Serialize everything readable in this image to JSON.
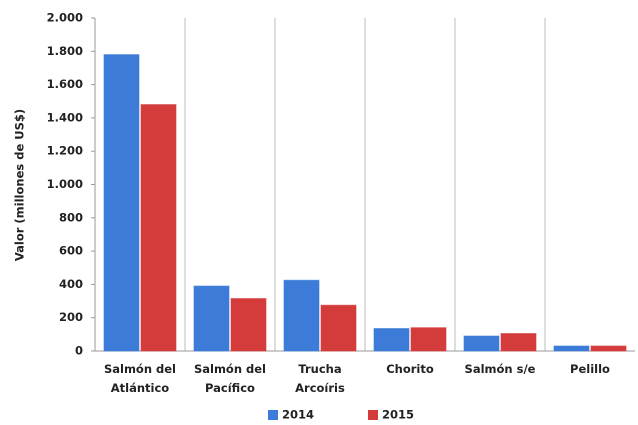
{
  "chart_data": {
    "type": "bar",
    "y_label": "Valor (millones de US$)",
    "categories": [
      "Salmón del Atlántico",
      "Salmón del Pacífico",
      "Trucha Arcoíris",
      "Chorito",
      "Salmón s/e",
      "Pelillo"
    ],
    "series": [
      {
        "name": "2014",
        "color": "#3c7bd8",
        "values": [
          1780,
          390,
          425,
          135,
          90,
          30
        ]
      },
      {
        "name": "2015",
        "color": "#d43c3c",
        "values": [
          1480,
          315,
          275,
          140,
          105,
          30
        ]
      }
    ],
    "ylim": [
      0,
      2000
    ],
    "yticks": [
      0,
      200,
      400,
      600,
      800,
      {
        "value": 1000,
        "label": "1.000"
      },
      {
        "value": 1200,
        "label": "1.200"
      },
      {
        "value": 1400,
        "label": "1.400"
      },
      {
        "value": 1600,
        "label": "1.600"
      },
      {
        "value": 1800,
        "label": "1.800"
      },
      {
        "value": 2000,
        "label": "2.000"
      }
    ],
    "x_grid": true,
    "legend": "bottom"
  }
}
